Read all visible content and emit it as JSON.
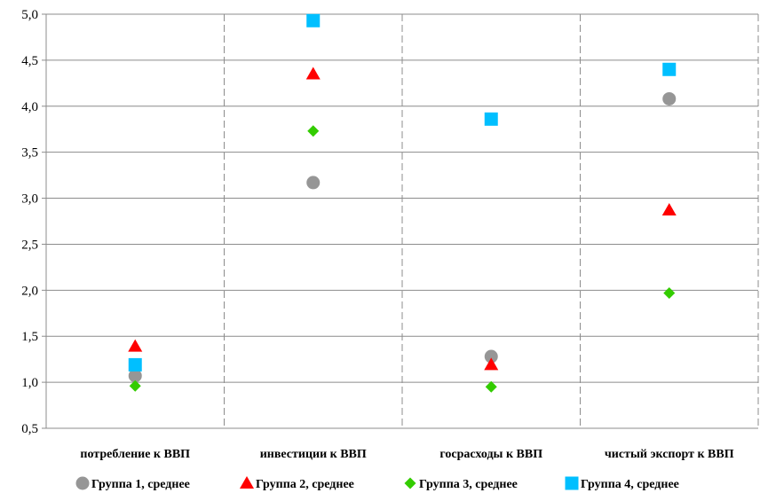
{
  "chart_data": {
    "type": "scatter",
    "categories": [
      "потребление к ВВП",
      "инвестиции к ВВП",
      "госрасходы к ВВП",
      "чистый экспорт к ВВП"
    ],
    "ylim": [
      0.5,
      5.0
    ],
    "yticks": [
      "0,5",
      "1,0",
      "1,5",
      "2,0",
      "2,5",
      "3,0",
      "3,5",
      "4,0",
      "4,5",
      "5,0"
    ],
    "grid": {
      "horizontal": true,
      "vertical_dashed_separators": true
    },
    "legend_position": "bottom",
    "series": [
      {
        "name": "Группа 1, среднее",
        "marker": "circle",
        "color": "#969696",
        "values": [
          1.07,
          3.17,
          1.28,
          4.08
        ]
      },
      {
        "name": "Группа 2, среднее",
        "marker": "triangle",
        "color": "#ff0000",
        "values": [
          1.39,
          4.35,
          1.19,
          2.87
        ]
      },
      {
        "name": "Группа 3, среднее",
        "marker": "diamond",
        "color": "#33cc00",
        "values": [
          0.96,
          3.73,
          0.95,
          1.97
        ]
      },
      {
        "name": "Группа 4, среднее",
        "marker": "square",
        "color": "#00bfff",
        "values": [
          1.19,
          4.93,
          3.86,
          4.4
        ]
      }
    ]
  }
}
